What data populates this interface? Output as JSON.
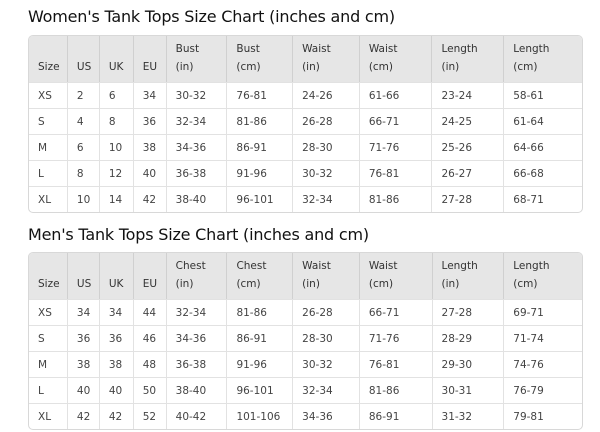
{
  "women": {
    "title": "Women's Tank Tops Size Chart (inches and cm)",
    "headers": [
      [
        "Size"
      ],
      [
        "US"
      ],
      [
        "UK"
      ],
      [
        "EU"
      ],
      [
        "Bust",
        "(in)"
      ],
      [
        "Bust",
        "(cm)"
      ],
      [
        "Waist",
        "(in)"
      ],
      [
        "Waist",
        "(cm)"
      ],
      [
        "Length",
        "(in)"
      ],
      [
        "Length",
        "(cm)"
      ]
    ],
    "rows": [
      [
        "XS",
        "2",
        "6",
        "34",
        "30-32",
        "76-81",
        "24-26",
        "61-66",
        "23-24",
        "58-61"
      ],
      [
        "S",
        "4",
        "8",
        "36",
        "32-34",
        "81-86",
        "26-28",
        "66-71",
        "24-25",
        "61-64"
      ],
      [
        "M",
        "6",
        "10",
        "38",
        "34-36",
        "86-91",
        "28-30",
        "71-76",
        "25-26",
        "64-66"
      ],
      [
        "L",
        "8",
        "12",
        "40",
        "36-38",
        "91-96",
        "30-32",
        "76-81",
        "26-27",
        "66-68"
      ],
      [
        "XL",
        "10",
        "14",
        "42",
        "38-40",
        "96-101",
        "32-34",
        "81-86",
        "27-28",
        "68-71"
      ]
    ]
  },
  "men": {
    "title": "Men's Tank Tops Size Chart (inches and cm)",
    "headers": [
      [
        "Size"
      ],
      [
        "US"
      ],
      [
        "UK"
      ],
      [
        "EU"
      ],
      [
        "Chest",
        "(in)"
      ],
      [
        "Chest",
        "(cm)"
      ],
      [
        "Waist",
        "(in)"
      ],
      [
        "Waist",
        "(cm)"
      ],
      [
        "Length",
        "(in)"
      ],
      [
        "Length",
        "(cm)"
      ]
    ],
    "rows": [
      [
        "XS",
        "34",
        "34",
        "44",
        "32-34",
        "81-86",
        "26-28",
        "66-71",
        "27-28",
        "69-71"
      ],
      [
        "S",
        "36",
        "36",
        "46",
        "34-36",
        "86-91",
        "28-30",
        "71-76",
        "28-29",
        "71-74"
      ],
      [
        "M",
        "38",
        "38",
        "48",
        "36-38",
        "91-96",
        "30-32",
        "76-81",
        "29-30",
        "74-76"
      ],
      [
        "L",
        "40",
        "40",
        "50",
        "38-40",
        "96-101",
        "32-34",
        "81-86",
        "30-31",
        "76-79"
      ],
      [
        "XL",
        "42",
        "42",
        "52",
        "40-42",
        "101-106",
        "34-36",
        "86-91",
        "31-32",
        "79-81"
      ]
    ]
  }
}
